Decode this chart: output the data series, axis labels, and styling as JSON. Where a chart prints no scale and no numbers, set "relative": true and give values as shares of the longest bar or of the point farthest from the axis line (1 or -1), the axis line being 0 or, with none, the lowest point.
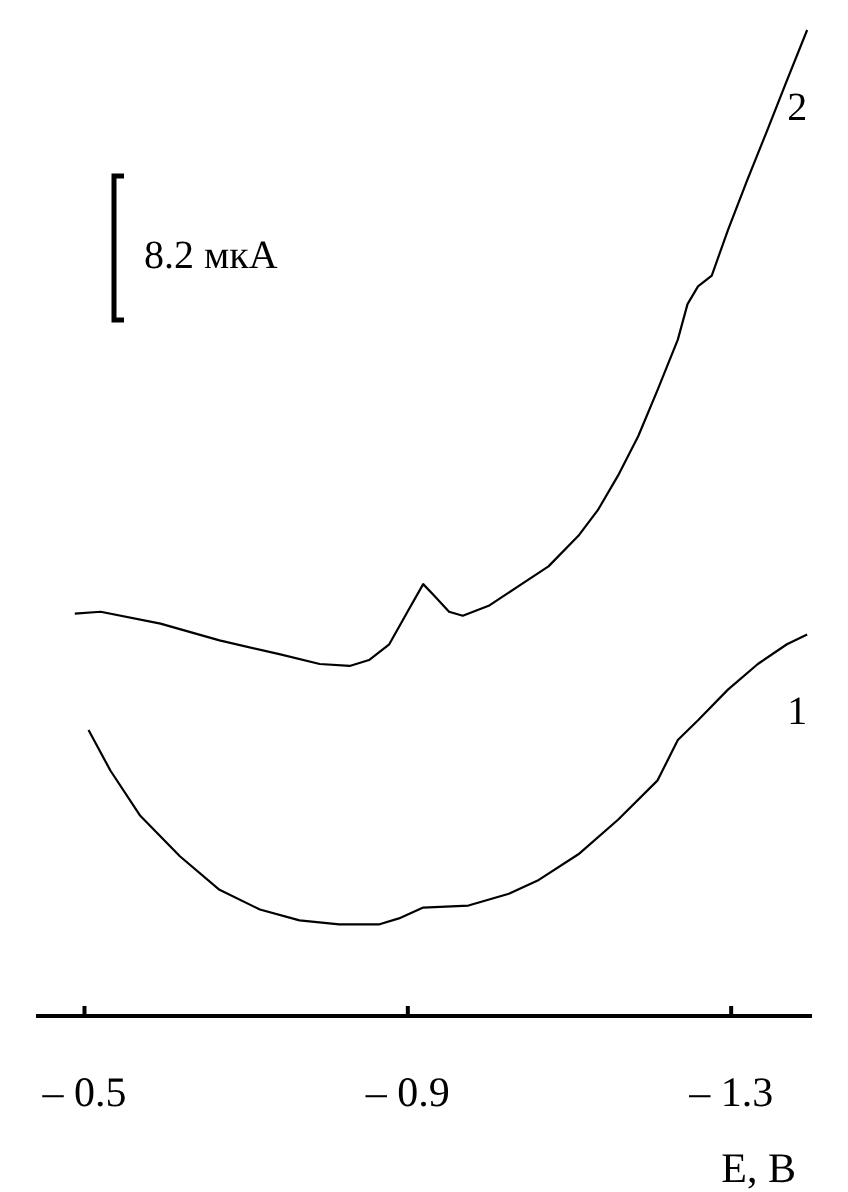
{
  "chart_data": {
    "type": "line",
    "relative": true,
    "xlabel": "E, В",
    "annotations": [
      "8.2 мкА"
    ],
    "xlim": [
      -0.44,
      -1.4
    ],
    "xticks": [
      {
        "value": -0.5,
        "label": "– 0.5"
      },
      {
        "value": -0.9,
        "label": "– 0.9"
      },
      {
        "value": -1.3,
        "label": "– 1.3"
      }
    ],
    "grid": false,
    "marker": "none",
    "line_style": "solid",
    "series": [
      {
        "name": "1",
        "color": "#000000",
        "x": [
          -0.505,
          -0.532,
          -0.569,
          -0.618,
          -0.667,
          -0.717,
          -0.766,
          -0.815,
          -0.865,
          -0.889,
          -0.919,
          -0.975,
          -1.025,
          -1.062,
          -1.111,
          -1.16,
          -1.209,
          -1.234,
          -1.259,
          -1.296,
          -1.333,
          -1.369,
          -1.394
        ],
        "values": [
          0.29,
          0.249,
          0.203,
          0.162,
          0.128,
          0.108,
          0.097,
          0.093,
          0.093,
          0.099,
          0.11,
          0.112,
          0.124,
          0.138,
          0.164,
          0.199,
          0.239,
          0.28,
          0.3,
          0.331,
          0.357,
          0.377,
          0.387
        ]
      },
      {
        "name": "2",
        "color": "#000000",
        "x": [
          -0.488,
          -0.52,
          -0.594,
          -0.667,
          -0.741,
          -0.791,
          -0.828,
          -0.852,
          -0.877,
          -0.901,
          -0.919,
          -0.933,
          -0.951,
          -0.968,
          -1.0,
          -1.037,
          -1.074,
          -1.111,
          -1.135,
          -1.16,
          -1.185,
          -1.209,
          -1.234,
          -1.246,
          -1.259,
          -1.276,
          -1.296,
          -1.32,
          -1.345,
          -1.369,
          -1.394
        ],
        "values": [
          0.408,
          0.41,
          0.398,
          0.381,
          0.367,
          0.357,
          0.355,
          0.361,
          0.377,
          0.412,
          0.438,
          0.426,
          0.41,
          0.406,
          0.416,
          0.436,
          0.456,
          0.487,
          0.513,
          0.548,
          0.588,
          0.635,
          0.686,
          0.722,
          0.74,
          0.751,
          0.797,
          0.848,
          0.899,
          0.949,
          1
        ]
      }
    ]
  }
}
